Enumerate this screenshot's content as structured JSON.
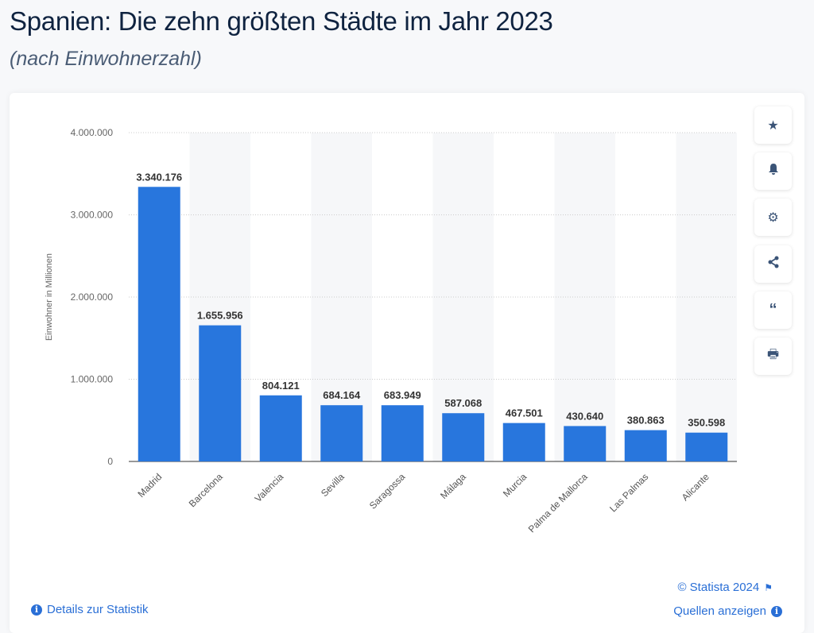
{
  "header": {
    "title": "Spanien: Die zehn größten Städte im Jahr 2023",
    "subtitle": "(nach Einwohnerzahl)"
  },
  "chart_data": {
    "type": "bar",
    "categories": [
      "Madrid",
      "Barcelona",
      "Valencia",
      "Sevilla",
      "Saragossa",
      "Málaga",
      "Murcia",
      "Palma de Mallorca",
      "Las Palmas",
      "Alicante"
    ],
    "values": [
      3340176,
      1655956,
      804121,
      684164,
      683949,
      587068,
      467501,
      430640,
      380863,
      350598
    ],
    "value_labels": [
      "3.340.176",
      "1.655.956",
      "804.121",
      "684.164",
      "683.949",
      "587.068",
      "467.501",
      "430.640",
      "380.863",
      "350.598"
    ],
    "ylabel": "Einwohner in Millionen",
    "ylim": [
      0,
      4000000
    ],
    "yticks": [
      0,
      1000000,
      2000000,
      3000000,
      4000000
    ],
    "ytick_labels": [
      "0",
      "1.000.000",
      "2.000.000",
      "3.000.000",
      "4.000.000"
    ],
    "bar_color": "#2876dd",
    "grid": true
  },
  "sidebar": {
    "icons": [
      "star-icon",
      "bell-icon",
      "gear-icon",
      "share-icon",
      "quote-icon",
      "print-icon"
    ]
  },
  "footer": {
    "copyright": "© Statista 2024",
    "details": "Details zur Statistik",
    "sources": "Quellen anzeigen"
  }
}
